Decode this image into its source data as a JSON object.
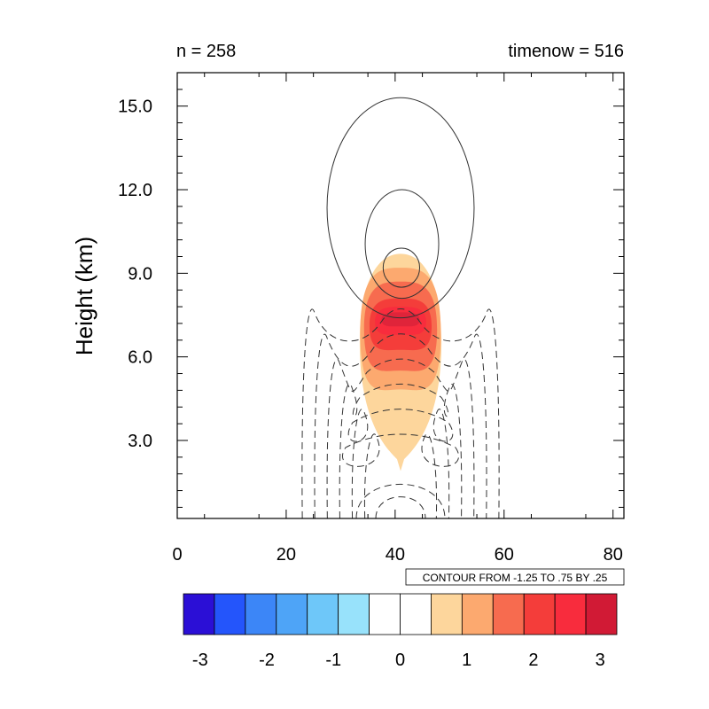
{
  "header": {
    "left_text": "n = 258",
    "right_text": "timenow = 516"
  },
  "contour_info": "CONTOUR FROM -1.25 TO .75 BY .25",
  "chart_data": {
    "type": "heatmap",
    "plot_style": "filled contours with overlaid line contours",
    "xlim": [
      0,
      82
    ],
    "ylim": [
      0.2,
      16.2
    ],
    "ylabel": "Height (km)",
    "x_ticks": [
      0,
      20,
      40,
      60,
      80
    ],
    "x_tick_labels": [
      "0",
      "20",
      "40",
      "60",
      "80"
    ],
    "y_ticks": [
      3.0,
      6.0,
      9.0,
      12.0,
      15.0
    ],
    "y_tick_labels": [
      "3.0",
      "6.0",
      "9.0",
      "12.0",
      "15.0"
    ],
    "grid": false,
    "fill_center": {
      "x": 41,
      "y": 6.5
    },
    "fill_levels": [
      {
        "value": 0.5,
        "color": "#fdd69c",
        "x_range": [
          33.5,
          48.5
        ],
        "y_range": [
          1.9,
          9.7
        ]
      },
      {
        "value": 1.0,
        "color": "#fca96f",
        "x_range": [
          33.6,
          48.4
        ],
        "y_range": [
          4.0,
          9.2
        ]
      },
      {
        "value": 1.5,
        "color": "#f76b4f",
        "x_range": [
          34.3,
          47.7
        ],
        "y_range": [
          4.9,
          8.7
        ]
      },
      {
        "value": 2.0,
        "color": "#f43d3a",
        "x_range": [
          35.3,
          46.7
        ],
        "y_range": [
          5.9,
          8.1
        ]
      },
      {
        "value": 2.5,
        "color": "#f82c3d",
        "x_range": [
          36.3,
          45.7
        ],
        "y_range": [
          6.6,
          7.8
        ]
      },
      {
        "value": 3.0,
        "color": "#e0243a",
        "x_range": [
          37.5,
          44.5
        ],
        "y_range": [
          7.0,
          7.6
        ]
      }
    ],
    "line_contours": {
      "solid_positive": [
        {
          "x_range": [
            27.5,
            54.5
          ],
          "y_range": [
            7.4,
            15.3
          ]
        },
        {
          "x_range": [
            34.5,
            48.0
          ],
          "y_range": [
            8.1,
            12.0
          ]
        },
        {
          "x_range": [
            37.8,
            44.5
          ],
          "y_range": [
            8.5,
            9.9
          ]
        }
      ],
      "dashed_negative_count": 6
    },
    "colorbar": {
      "levels": [
        -3.25,
        -2.75,
        -2.25,
        -1.75,
        -1.25,
        -0.75,
        -0.25,
        0.25,
        0.75,
        1.25,
        1.75,
        2.25,
        2.75,
        3.25
      ],
      "colors": [
        "#2b0fd6",
        "#2455fb",
        "#3c86f7",
        "#4ea4f7",
        "#6ec7f9",
        "#98e2fb",
        "#ffffff",
        "#ffffff",
        "#fdd69c",
        "#fca96f",
        "#f76b4f",
        "#f43d3a",
        "#f82c3d",
        "#d11a35"
      ],
      "tick_values": [
        -3,
        -2,
        -1,
        0,
        1,
        2,
        3
      ],
      "tick_labels": [
        "-3",
        "-2",
        "-1",
        "0",
        "1",
        "2",
        "3"
      ]
    }
  }
}
